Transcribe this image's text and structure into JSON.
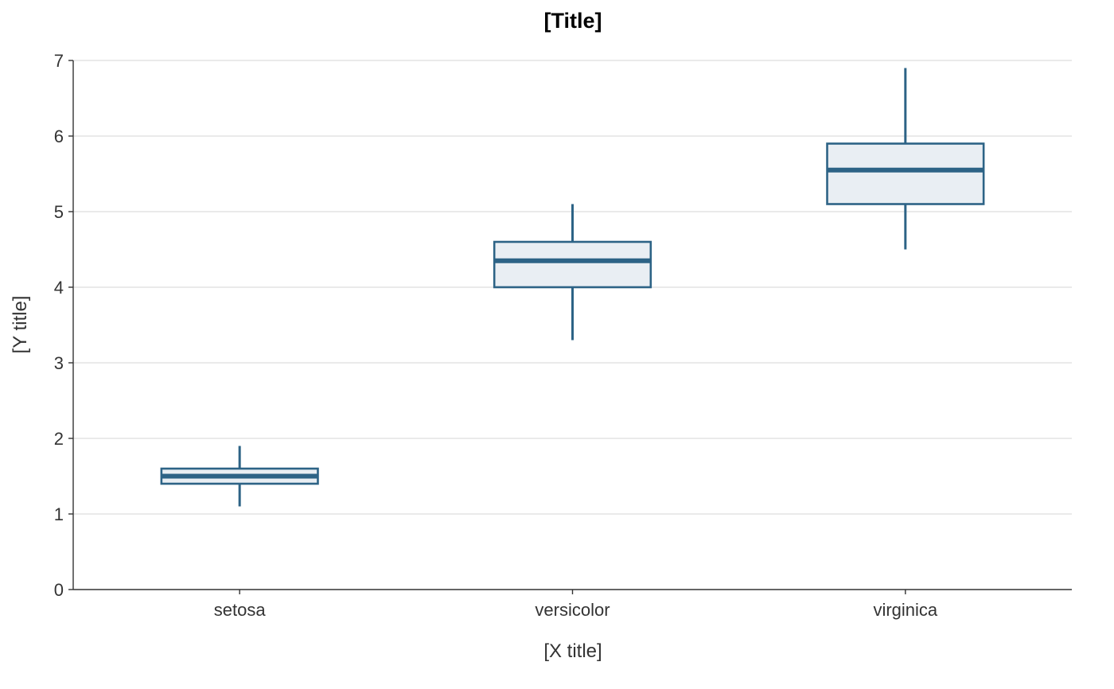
{
  "chart_data": {
    "type": "boxplot",
    "title": "[Title]",
    "xlabel": "[X title]",
    "ylabel": "[Y title]",
    "categories": [
      "setosa",
      "versicolor",
      "virginica"
    ],
    "boxes": [
      {
        "category": "setosa",
        "whisker_low": 1.1,
        "q1": 1.4,
        "median": 1.5,
        "q3": 1.6,
        "whisker_high": 1.9
      },
      {
        "category": "versicolor",
        "whisker_low": 3.3,
        "q1": 4.0,
        "median": 4.35,
        "q3": 4.6,
        "whisker_high": 5.1
      },
      {
        "category": "virginica",
        "whisker_low": 4.5,
        "q1": 5.1,
        "median": 5.55,
        "q3": 5.9,
        "whisker_high": 6.9
      }
    ],
    "ylim": [
      0,
      7
    ],
    "yticks": [
      0,
      1,
      2,
      3,
      4,
      5,
      6,
      7
    ],
    "grid": "horizontal",
    "legend": "none",
    "colors": {
      "box_stroke": "#2d6386",
      "box_fill": "#e9eef3",
      "grid": "#d6d6d6",
      "axis": "#333333"
    }
  }
}
